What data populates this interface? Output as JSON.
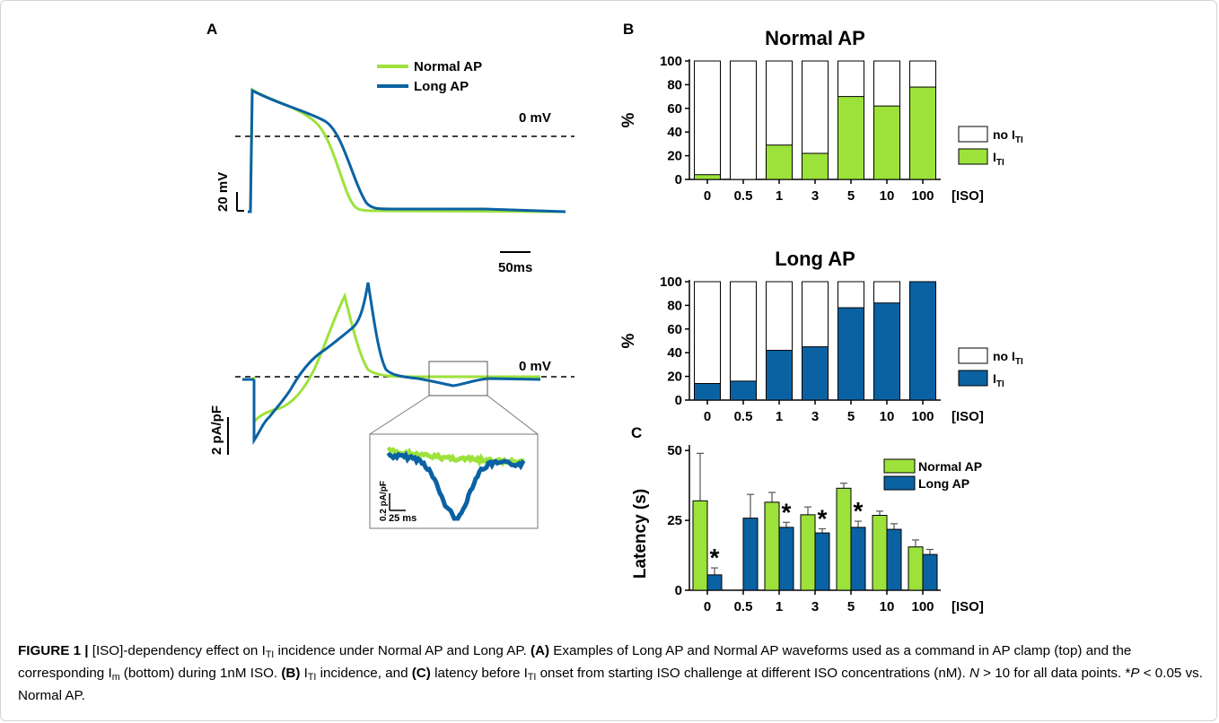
{
  "colors": {
    "normal": "#9de23b",
    "long": "#0b62a3",
    "white": "#ffffff"
  },
  "panel_a": {
    "label": "A",
    "legend": {
      "normal": "Normal AP",
      "long": "Long AP"
    },
    "top_zero_label": "0 mV",
    "top_scale_v": "20 mV",
    "scale_t": "50ms",
    "bottom_zero_label": "0 mV",
    "bottom_scale_i": "2 pA/pF",
    "inset_scale_i": "0.2 pA/pF",
    "inset_scale_t": "25 ms"
  },
  "panel_b": {
    "label": "B",
    "x_unit": "[ISO]",
    "ylabel": "%",
    "legend_off_prefix": "no I",
    "legend_on_prefix": "I",
    "legend_sub": "TI"
  },
  "panel_c": {
    "label": "C",
    "ylabel": "Latency (s)",
    "x_unit": "[ISO]",
    "star": "*"
  },
  "caption": {
    "fig_label": "FIGURE 1 |",
    "t1": " [ISO]-dependency effect on I",
    "sub_ti": "TI",
    "t2": " incidence under Normal AP and Long AP. ",
    "a_label": "(A)",
    "t3": " Examples of Long AP and Normal AP waveforms used as a command in AP clamp (top) and the corresponding I",
    "sub_m": "m",
    "t4": " (bottom) during 1nM ISO. ",
    "b_label": "(B)",
    "t5": " I",
    "t6": " incidence, and ",
    "c_label": "(C)",
    "t7": " latency before I",
    "t8": " onset from starting ISO challenge at different ISO concentrations (nM). ",
    "n_italic": "N",
    "t9": " > 10 for all data points. *",
    "p_italic": "P",
    "t10": " < 0.05 vs. Normal AP."
  },
  "chart_data": [
    {
      "type": "bar",
      "title": "Normal AP",
      "categories": [
        "0",
        "0.5",
        "1",
        "3",
        "5",
        "10",
        "100"
      ],
      "ylabel": "%",
      "xlabel": "[ISO]",
      "ylim": [
        0,
        100
      ],
      "yticks": [
        0,
        20,
        40,
        60,
        80,
        100
      ],
      "stacked": true,
      "series": [
        {
          "name": "I_TI",
          "values": [
            4,
            0,
            29,
            22,
            70,
            62,
            78
          ]
        },
        {
          "name": "no I_TI",
          "values": [
            96,
            100,
            71,
            78,
            30,
            38,
            22
          ]
        }
      ]
    },
    {
      "type": "bar",
      "title": "Long AP",
      "categories": [
        "0",
        "0.5",
        "1",
        "3",
        "5",
        "10",
        "100"
      ],
      "ylabel": "%",
      "xlabel": "[ISO]",
      "ylim": [
        0,
        100
      ],
      "yticks": [
        0,
        20,
        40,
        60,
        80,
        100
      ],
      "stacked": true,
      "series": [
        {
          "name": "I_TI",
          "values": [
            14,
            16,
            42,
            45,
            78,
            82,
            100
          ]
        },
        {
          "name": "no I_TI",
          "values": [
            86,
            84,
            58,
            55,
            22,
            18,
            0
          ]
        }
      ]
    },
    {
      "type": "bar",
      "title": "",
      "categories": [
        "0",
        "0.5",
        "1",
        "3",
        "5",
        "10",
        "100"
      ],
      "ylabel": "Latency (s)",
      "xlabel": "[ISO]",
      "ylim": [
        0,
        52
      ],
      "yticks": [
        0,
        25,
        50
      ],
      "series": [
        {
          "name": "Normal AP",
          "values": [
            32,
            null,
            31.5,
            27,
            36.5,
            26.8,
            15.5
          ],
          "errors": [
            17,
            null,
            3.5,
            2.8,
            1.8,
            1.5,
            2.5
          ]
        },
        {
          "name": "Long AP",
          "values": [
            5.5,
            25.8,
            22.5,
            20.5,
            22.5,
            21.8,
            12.8
          ],
          "errors": [
            2.5,
            8.5,
            1.8,
            1.5,
            2.2,
            2,
            1.8
          ]
        }
      ],
      "significance": [
        true,
        false,
        true,
        true,
        true,
        false,
        false
      ]
    }
  ]
}
